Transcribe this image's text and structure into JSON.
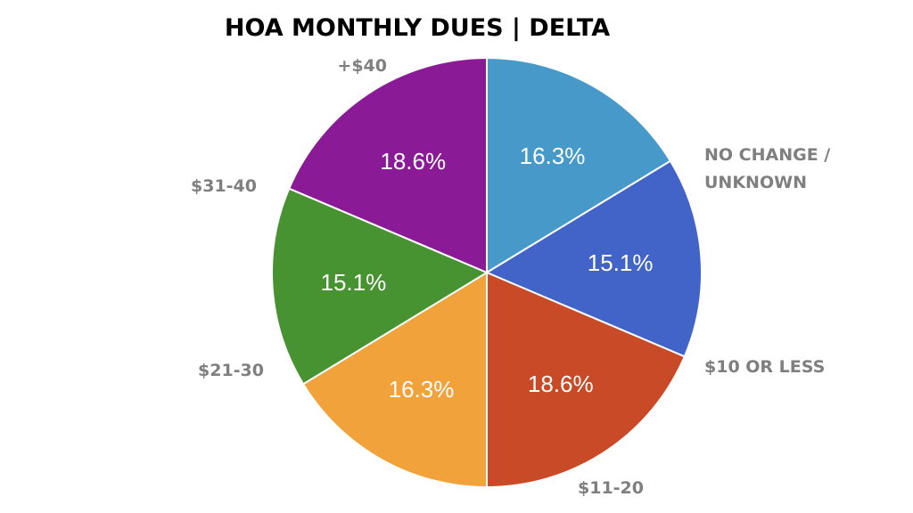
{
  "chart_data": {
    "type": "pie",
    "title": "HOA MONTHLY DUES | DELTA",
    "slices": [
      {
        "label": [
          "NO CHANGE /",
          "UNKNOWN"
        ],
        "value": 16.3,
        "display": "16.3%",
        "color": "#4699c8"
      },
      {
        "label": [
          "$10 OR LESS"
        ],
        "value": 15.1,
        "display": "15.1%",
        "color": "#4264c8"
      },
      {
        "label": [
          "$11-20"
        ],
        "value": 18.6,
        "display": "18.6%",
        "color": "#c94a27"
      },
      {
        "label": [
          "$21-30"
        ],
        "value": 16.3,
        "display": "16.3%",
        "color": "#f1a23a"
      },
      {
        "label": [
          "$31-40"
        ],
        "value": 15.1,
        "display": "15.1%",
        "color": "#479332"
      },
      {
        "label": [
          "+$40"
        ],
        "value": 18.6,
        "display": "18.6%",
        "color": "#8b1a97"
      }
    ],
    "start_angle_deg": 90,
    "direction": "clockwise",
    "legend": "none"
  }
}
